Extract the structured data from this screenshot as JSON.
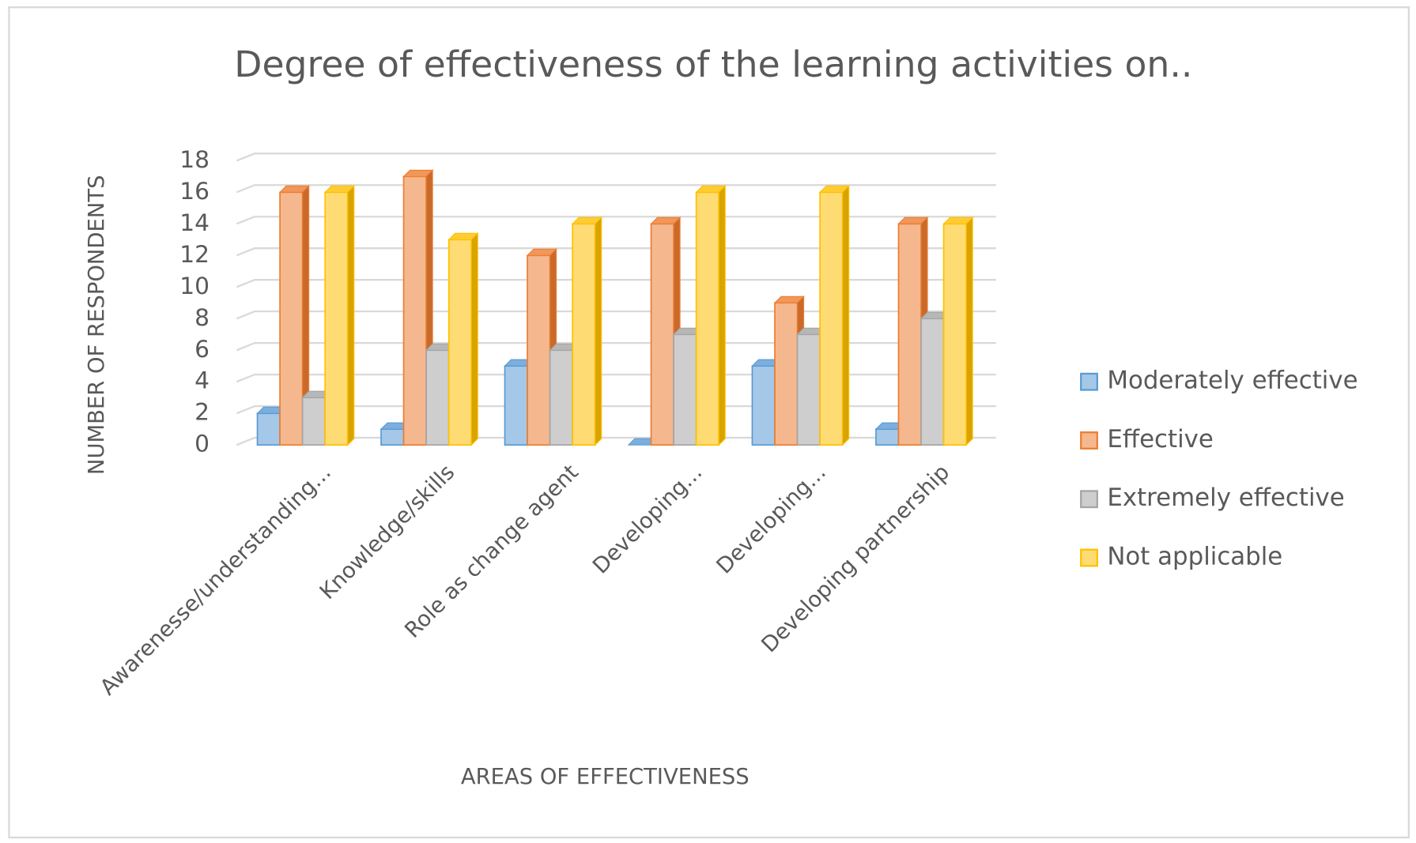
{
  "chart_data": {
    "type": "bar3d",
    "title": "Degree of effectiveness of the learning activities on..",
    "x_label": "AREAS OF EFFECTIVENESS",
    "y_label": "NUMBER OF RESPONDENTS",
    "categories": [
      "Awarenesse/understanding...",
      "Knowledge/skills",
      "Role as change agent",
      "Developing...",
      "Developing...",
      "Developing partnership"
    ],
    "series": [
      {
        "name": "Moderately effective",
        "color": "#5b9bd5",
        "values": [
          2,
          1,
          5,
          0,
          5,
          1
        ]
      },
      {
        "name": "Effective",
        "color": "#ed7d31",
        "values": [
          16,
          17,
          12,
          14,
          9,
          14
        ]
      },
      {
        "name": "Extremely effective",
        "color": "#a5a5a5",
        "values": [
          3,
          6,
          6,
          7,
          7,
          8
        ]
      },
      {
        "name": "Not applicable",
        "color": "#ffc000",
        "values": [
          16,
          13,
          14,
          16,
          16,
          14
        ]
      }
    ],
    "ylim": [
      0,
      18
    ],
    "yticks": [
      0,
      2,
      4,
      6,
      8,
      10,
      12,
      14,
      16,
      18
    ],
    "grid": true,
    "legend": "right"
  }
}
